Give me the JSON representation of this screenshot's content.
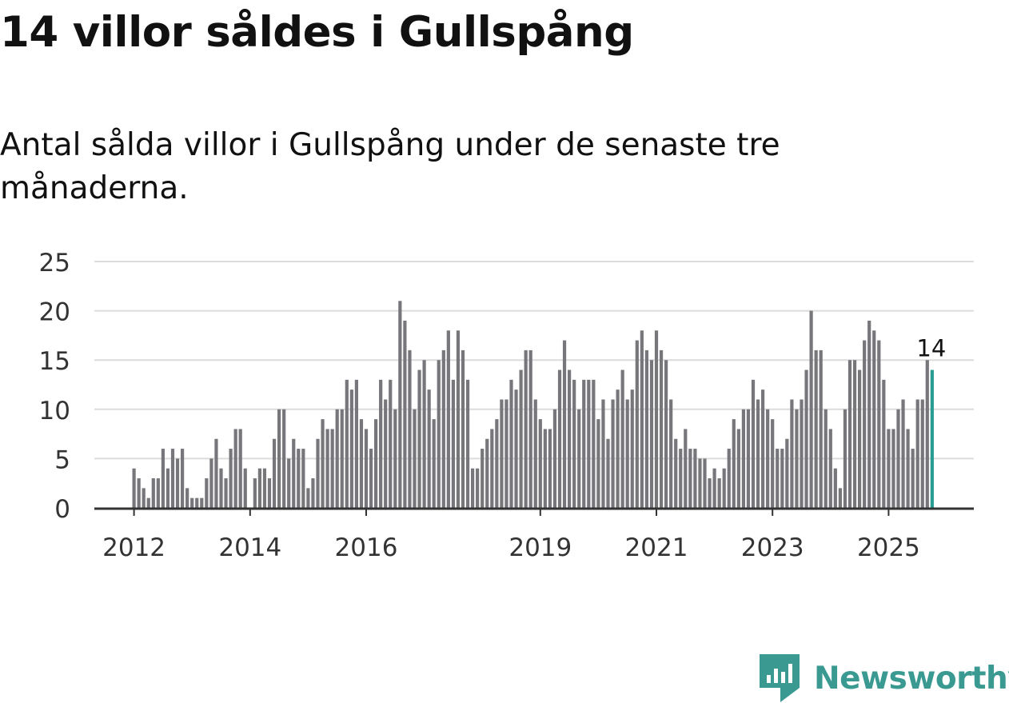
{
  "page": {
    "title": "14 villor såldes i Gullspång",
    "subtitle": "Antal sålda villor i Gullspång under de senaste tre månaderna."
  },
  "brand": {
    "name": "Newsworthy",
    "color": "#3a9a92",
    "icon": "newsworthy-logo-icon"
  },
  "chart_data": {
    "type": "bar",
    "title": "14 villor såldes i Gullspång",
    "subtitle": "Antal sålda villor i Gullspång under de senaste tre månaderna.",
    "xlabel": "",
    "ylabel": "",
    "ylim": [
      0,
      25
    ],
    "yticks": [
      0,
      5,
      10,
      15,
      20,
      25
    ],
    "grid": true,
    "first_period": "2012-01",
    "x_tick_labels": [
      {
        "label": "2012",
        "index": 0
      },
      {
        "label": "2014",
        "index": 24
      },
      {
        "label": "2016",
        "index": 48
      },
      {
        "label": "2019",
        "index": 84
      },
      {
        "label": "2021",
        "index": 108
      },
      {
        "label": "2023",
        "index": 132
      },
      {
        "label": "2025",
        "index": 156
      }
    ],
    "bar_color": "#77767b",
    "highlight_color": "#2a9d93",
    "highlight_index": 165,
    "highlight_label": "14",
    "values": [
      4,
      3,
      2,
      1,
      3,
      3,
      6,
      4,
      6,
      5,
      6,
      2,
      1,
      1,
      1,
      3,
      5,
      7,
      4,
      3,
      6,
      8,
      8,
      4,
      0,
      3,
      4,
      4,
      3,
      7,
      10,
      10,
      5,
      7,
      6,
      6,
      2,
      3,
      7,
      9,
      8,
      8,
      10,
      10,
      13,
      12,
      13,
      9,
      8,
      6,
      9,
      13,
      11,
      13,
      10,
      21,
      19,
      16,
      10,
      14,
      15,
      12,
      9,
      15,
      16,
      18,
      13,
      18,
      16,
      13,
      4,
      4,
      6,
      7,
      8,
      9,
      11,
      11,
      13,
      12,
      14,
      16,
      16,
      11,
      9,
      8,
      8,
      10,
      14,
      17,
      14,
      13,
      10,
      13,
      13,
      13,
      9,
      11,
      7,
      11,
      12,
      14,
      11,
      12,
      17,
      18,
      16,
      15,
      18,
      16,
      15,
      11,
      7,
      6,
      8,
      6,
      6,
      5,
      5,
      3,
      4,
      3,
      4,
      6,
      9,
      8,
      10,
      10,
      13,
      11,
      12,
      10,
      9,
      6,
      6,
      7,
      11,
      10,
      11,
      14,
      20,
      16,
      16,
      10,
      8,
      4,
      2,
      10,
      15,
      15,
      14,
      17,
      19,
      18,
      17,
      13,
      8,
      8,
      10,
      11,
      8,
      6,
      11,
      11,
      15,
      14
    ]
  }
}
